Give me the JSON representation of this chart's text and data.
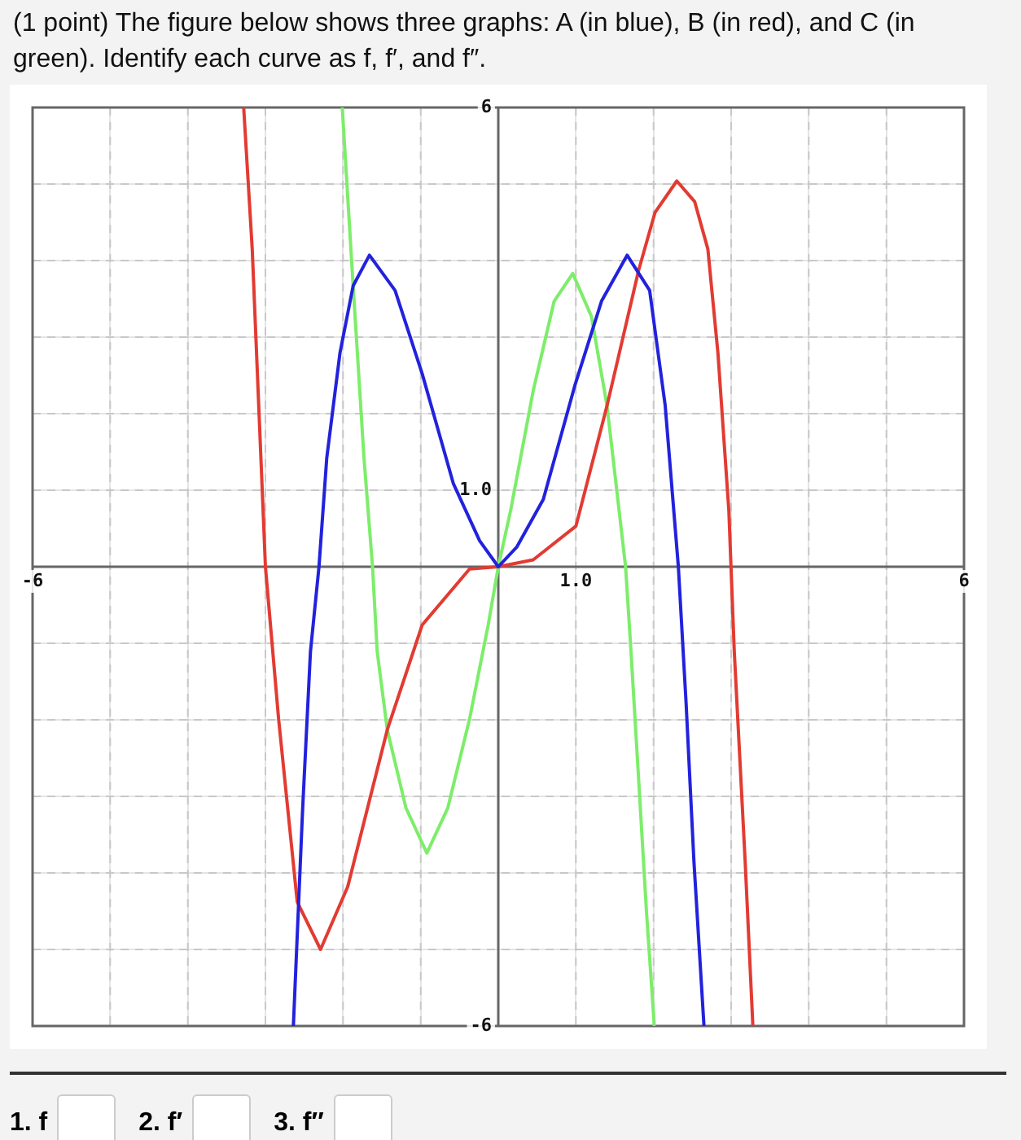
{
  "chart_data": {
    "type": "line",
    "title": "(1 point) The figure below shows three graphs: A (in blue), B (in red), and C (in green). Identify each curve as f, f′, and f″.",
    "annotations": [
      "1. f",
      "2. f′",
      "3. f″"
    ],
    "xlim": [
      -6,
      6
    ],
    "ylim": [
      -6,
      6
    ],
    "xticks": [
      {
        "value": -6,
        "label": "-6"
      },
      {
        "value": -5,
        "label": null
      },
      {
        "value": -4,
        "label": null
      },
      {
        "value": -3,
        "label": null
      },
      {
        "value": -2,
        "label": null
      },
      {
        "value": -1,
        "label": null
      },
      {
        "value": 0,
        "label": null
      },
      {
        "value": 1,
        "label": "1.0"
      },
      {
        "value": 2,
        "label": null
      },
      {
        "value": 3,
        "label": null
      },
      {
        "value": 4,
        "label": null
      },
      {
        "value": 5,
        "label": null
      },
      {
        "value": 6,
        "label": "6"
      }
    ],
    "yticks": [
      {
        "value": -6,
        "label": "-6"
      },
      {
        "value": -5,
        "label": null
      },
      {
        "value": -4,
        "label": null
      },
      {
        "value": -3,
        "label": null
      },
      {
        "value": -2,
        "label": null
      },
      {
        "value": -1,
        "label": null
      },
      {
        "value": 0,
        "label": null
      },
      {
        "value": 1,
        "label": "1.0"
      },
      {
        "value": 2,
        "label": null
      },
      {
        "value": 3,
        "label": null
      },
      {
        "value": 4,
        "label": null
      },
      {
        "value": 5,
        "label": null
      },
      {
        "value": 6,
        "label": "6"
      }
    ],
    "grid": true,
    "legend": false,
    "marker": "none",
    "line_style": "solid",
    "series": [
      {
        "color": "#2222dd",
        "x": [
          -2.64,
          -2.52,
          -2.42,
          -2.31,
          -2.21,
          -2.04,
          -1.87,
          -1.66,
          -1.33,
          -0.98,
          -0.58,
          -0.24,
          0,
          0.24,
          0.58,
          0.99,
          1.33,
          1.66,
          1.95,
          2.15,
          2.32,
          2.42,
          2.52,
          2.65
        ],
        "values": [
          -6,
          -3.15,
          -1.11,
          0,
          1.42,
          2.79,
          3.67,
          4.07,
          3.61,
          2.52,
          1.09,
          0.34,
          0,
          0.26,
          0.88,
          2.38,
          3.47,
          4.07,
          3.61,
          2.11,
          0,
          -1.79,
          -3.84,
          -6
        ]
      },
      {
        "color": "#e23b32",
        "x": [
          -3.28,
          -3.17,
          -3.0,
          -2.83,
          -2.59,
          -2.29,
          -1.94,
          -1.43,
          -0.98,
          -0.37,
          0,
          0.45,
          1.0,
          1.4,
          1.81,
          2.02,
          2.3,
          2.53,
          2.7,
          2.83,
          2.97,
          3.04,
          3.11,
          3.18,
          3.28
        ],
        "values": [
          6,
          4.15,
          0,
          -1.99,
          -4.38,
          -5.0,
          -4.18,
          -2.13,
          -0.76,
          -0.03,
          0,
          0.09,
          0.53,
          2.1,
          3.88,
          4.63,
          5.04,
          4.77,
          4.15,
          2.79,
          0.74,
          -1.1,
          -2.47,
          -3.84,
          -6
        ]
      },
      {
        "color": "#7ded6a",
        "x": [
          -2.01,
          -1.87,
          -1.73,
          -1.62,
          -1.56,
          -1.43,
          -1.19,
          -0.92,
          -0.65,
          -0.37,
          -0.13,
          0,
          0.16,
          0.45,
          0.72,
          0.96,
          1.2,
          1.4,
          1.64,
          1.71,
          1.81,
          1.91,
          2.01
        ],
        "values": [
          6,
          3.67,
          1.42,
          0,
          -1.11,
          -2.13,
          -3.15,
          -3.74,
          -3.15,
          -1.99,
          -0.76,
          0,
          0.74,
          2.3,
          3.47,
          3.83,
          3.27,
          2.11,
          0,
          -1.11,
          -2.81,
          -4.52,
          -6
        ]
      }
    ]
  }
}
